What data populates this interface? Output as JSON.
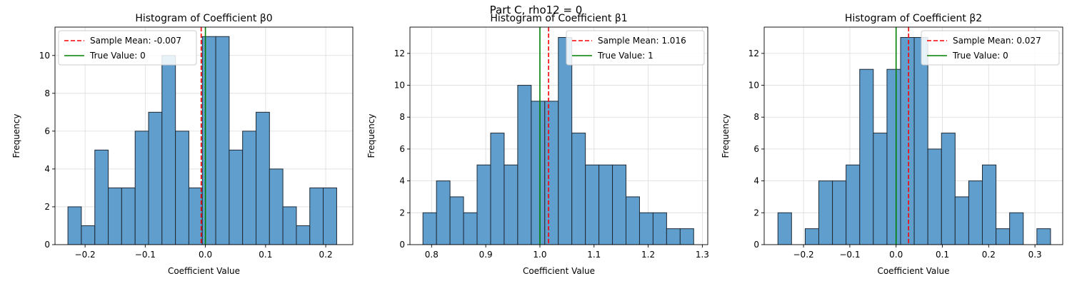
{
  "suptitle": "Part C, rho12 = 0",
  "chart_data": [
    {
      "type": "bar",
      "title": "Histogram of Coefficient β0",
      "xlabel": "Coefficient Value",
      "ylabel": "Frequency",
      "xlim": [
        -0.25,
        0.245
      ],
      "ylim": [
        0,
        11.5
      ],
      "xticks": [
        -0.2,
        -0.1,
        0.0,
        0.1,
        0.2
      ],
      "xticklabels": [
        "−0.2",
        "−0.1",
        "0.0",
        "0.1",
        "0.2"
      ],
      "yticks": [
        0,
        2,
        4,
        6,
        8,
        10
      ],
      "bin_edges": [
        -0.2285,
        -0.2062,
        -0.1838,
        -0.1615,
        -0.1392,
        -0.1168,
        -0.0945,
        -0.0722,
        -0.0498,
        -0.0275,
        -0.0052,
        0.0172,
        0.0395,
        0.0618,
        0.0842,
        0.1065,
        0.1288,
        0.1512,
        0.1735,
        0.1958,
        0.2182
      ],
      "counts": [
        2,
        1,
        5,
        3,
        3,
        6,
        7,
        10,
        6,
        3,
        11,
        11,
        5,
        6,
        7,
        4,
        2,
        1,
        3,
        3
      ],
      "sample_mean": -0.007,
      "true_value": 0,
      "legend": {
        "position": "upper-left",
        "mean_label": "Sample Mean: -0.007",
        "true_label": "True Value: 0"
      },
      "grid": true
    },
    {
      "type": "bar",
      "title": "Histogram of Coefficient β1",
      "xlabel": "Coefficient Value",
      "ylabel": "Frequency",
      "xlim": [
        0.76,
        1.31
      ],
      "ylim": [
        0,
        13.65
      ],
      "xticks": [
        0.8,
        0.9,
        1.0,
        1.1,
        1.2,
        1.3
      ],
      "xticklabels": [
        "0.8",
        "0.9",
        "1.0",
        "1.1",
        "1.2",
        "1.3"
      ],
      "yticks": [
        0,
        2,
        4,
        6,
        8,
        10,
        12
      ],
      "bin_edges": [
        0.784,
        0.809,
        0.834,
        0.859,
        0.884,
        0.909,
        0.934,
        0.959,
        0.984,
        1.009,
        1.034,
        1.059,
        1.084,
        1.109,
        1.134,
        1.159,
        1.184,
        1.209,
        1.234,
        1.259,
        1.284
      ],
      "counts": [
        2,
        4,
        3,
        2,
        5,
        7,
        5,
        10,
        9,
        9,
        13,
        7,
        5,
        5,
        5,
        3,
        2,
        2,
        1,
        1
      ],
      "sample_mean": 1.016,
      "true_value": 1,
      "legend": {
        "position": "upper-right",
        "mean_label": "Sample Mean: 1.016",
        "true_label": "True Value: 1"
      },
      "grid": true
    },
    {
      "type": "bar",
      "title": "Histogram of Coefficient β2",
      "xlabel": "Coefficient Value",
      "ylabel": "Frequency",
      "xlim": [
        -0.285,
        0.36
      ],
      "ylim": [
        0,
        13.65
      ],
      "xticks": [
        -0.2,
        -0.1,
        0.0,
        0.1,
        0.2,
        0.3
      ],
      "xticklabels": [
        "−0.2",
        "−0.1",
        "0.0",
        "0.1",
        "0.2",
        "0.3"
      ],
      "yticks": [
        0,
        2,
        4,
        6,
        8,
        10,
        12
      ],
      "bin_edges": [
        -0.2553,
        -0.2259,
        -0.1964,
        -0.167,
        -0.1375,
        -0.1081,
        -0.0786,
        -0.0492,
        -0.0197,
        0.0097,
        0.0392,
        0.0686,
        0.0981,
        0.1275,
        0.157,
        0.1864,
        0.2159,
        0.2453,
        0.2748,
        0.3042,
        0.3337
      ],
      "counts": [
        2,
        0,
        1,
        4,
        4,
        5,
        11,
        7,
        11,
        13,
        13,
        6,
        7,
        3,
        4,
        5,
        1,
        2,
        0,
        1
      ],
      "sample_mean": 0.027,
      "true_value": 0,
      "legend": {
        "position": "upper-right",
        "mean_label": "Sample Mean: 0.027",
        "true_label": "True Value: 0"
      },
      "grid": true
    }
  ],
  "colors": {
    "bar_fill": "#5f9ecd",
    "bar_edge": "#1f2a36",
    "mean_line": "#ff0000",
    "true_line": "#008000",
    "grid": "#dcdcdc"
  }
}
